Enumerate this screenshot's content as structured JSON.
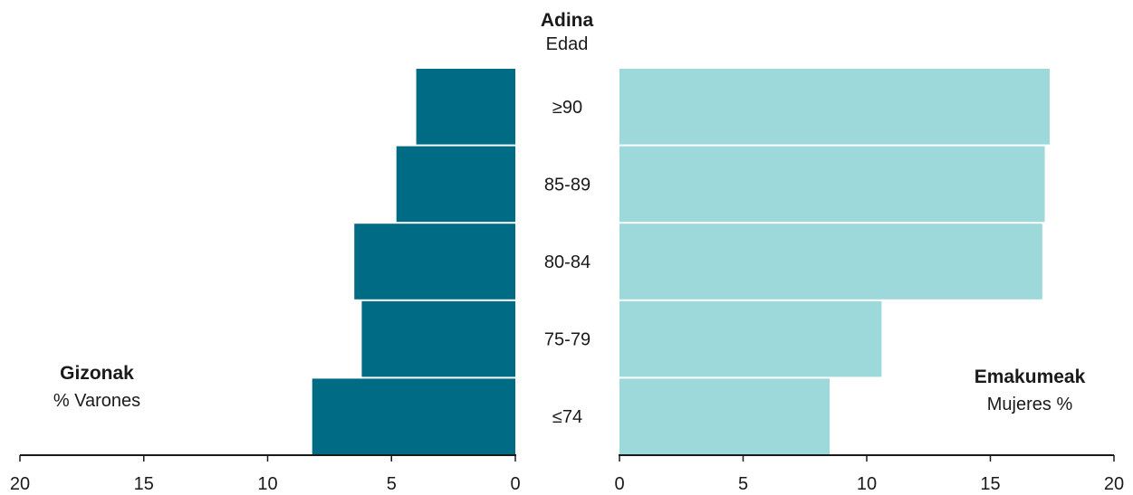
{
  "chart_data": {
    "type": "bar",
    "orientation": "horizontal",
    "layout": "population-pyramid",
    "header": {
      "title": "Adina",
      "subtitle": "Edad"
    },
    "categories": [
      "≥90",
      "85-89",
      "80-84",
      "75-79",
      "≤74"
    ],
    "series": [
      {
        "name": "Gizonak",
        "subname": "% Varones",
        "side": "left",
        "color": "#006b85",
        "values": [
          4.0,
          4.8,
          6.5,
          6.2,
          8.2
        ]
      },
      {
        "name": "Emakumeak",
        "subname": "Mujeres %",
        "side": "right",
        "color": "#9dd8da",
        "values": [
          17.4,
          17.2,
          17.1,
          10.6,
          8.5
        ]
      }
    ],
    "xlim": [
      0,
      20
    ],
    "xticks": [
      "0",
      "5",
      "10",
      "15",
      "20"
    ],
    "grid": false
  }
}
